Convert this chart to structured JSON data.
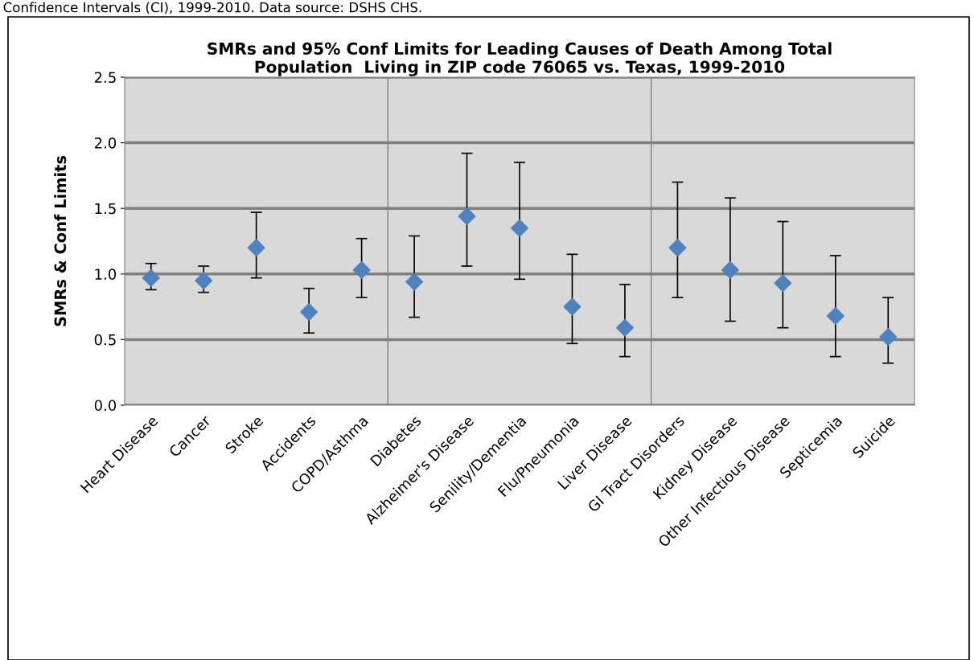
{
  "chart_data": {
    "type": "scatter",
    "title": "SMRs and 95% Conf Limits for Leading Causes of Death Among Total\nPopulation  Living in ZIP code 76065 vs. Texas, 1999-2010",
    "ylabel": "SMRs & Conf Limits",
    "annotations": [
      "Confidence Intervals (CI), 1999-2010. Data source: DSHS CHS."
    ],
    "categories": [
      "Heart Disease",
      "Cancer",
      "Stroke",
      "Accidents",
      "COPD/Asthma",
      "Diabetes",
      "Alzheimer's Disease",
      "Senility/Dementia",
      "Flu/Pneumonia",
      "Liver Disease",
      "GI Tract Disorders",
      "Kidney Disease",
      "Other Infectious Disease",
      "Septicemia",
      "Suicide"
    ],
    "series": [
      {
        "color": "#4f81bd",
        "values": [
          0.97,
          0.95,
          1.2,
          0.71,
          1.03,
          0.94,
          1.44,
          1.35,
          0.75,
          0.59,
          1.2,
          1.03,
          0.93,
          0.68,
          0.52
        ],
        "errors": [
          [
            0.88,
            1.08
          ],
          [
            0.86,
            1.06
          ],
          [
            0.97,
            1.47
          ],
          [
            0.55,
            0.89
          ],
          [
            0.82,
            1.27
          ],
          [
            0.67,
            1.29
          ],
          [
            1.06,
            1.92
          ],
          [
            0.96,
            1.85
          ],
          [
            0.47,
            1.15
          ],
          [
            0.37,
            0.92
          ],
          [
            0.82,
            1.7
          ],
          [
            0.64,
            1.58
          ],
          [
            0.59,
            1.4
          ],
          [
            0.37,
            1.14
          ],
          [
            0.32,
            0.82
          ]
        ]
      }
    ],
    "ylim": [
      0,
      2.5
    ],
    "yticks": [
      {
        "value": 0,
        "label": "0.0"
      },
      {
        "value": 0.5,
        "label": "0.5"
      },
      {
        "value": 1,
        "label": "1.0"
      },
      {
        "value": 1.5,
        "label": "1.5"
      },
      {
        "value": 2,
        "label": "2.0"
      },
      {
        "value": 2.5,
        "label": "2.5"
      }
    ],
    "grid": true,
    "marker": "diamond",
    "legend": false
  }
}
